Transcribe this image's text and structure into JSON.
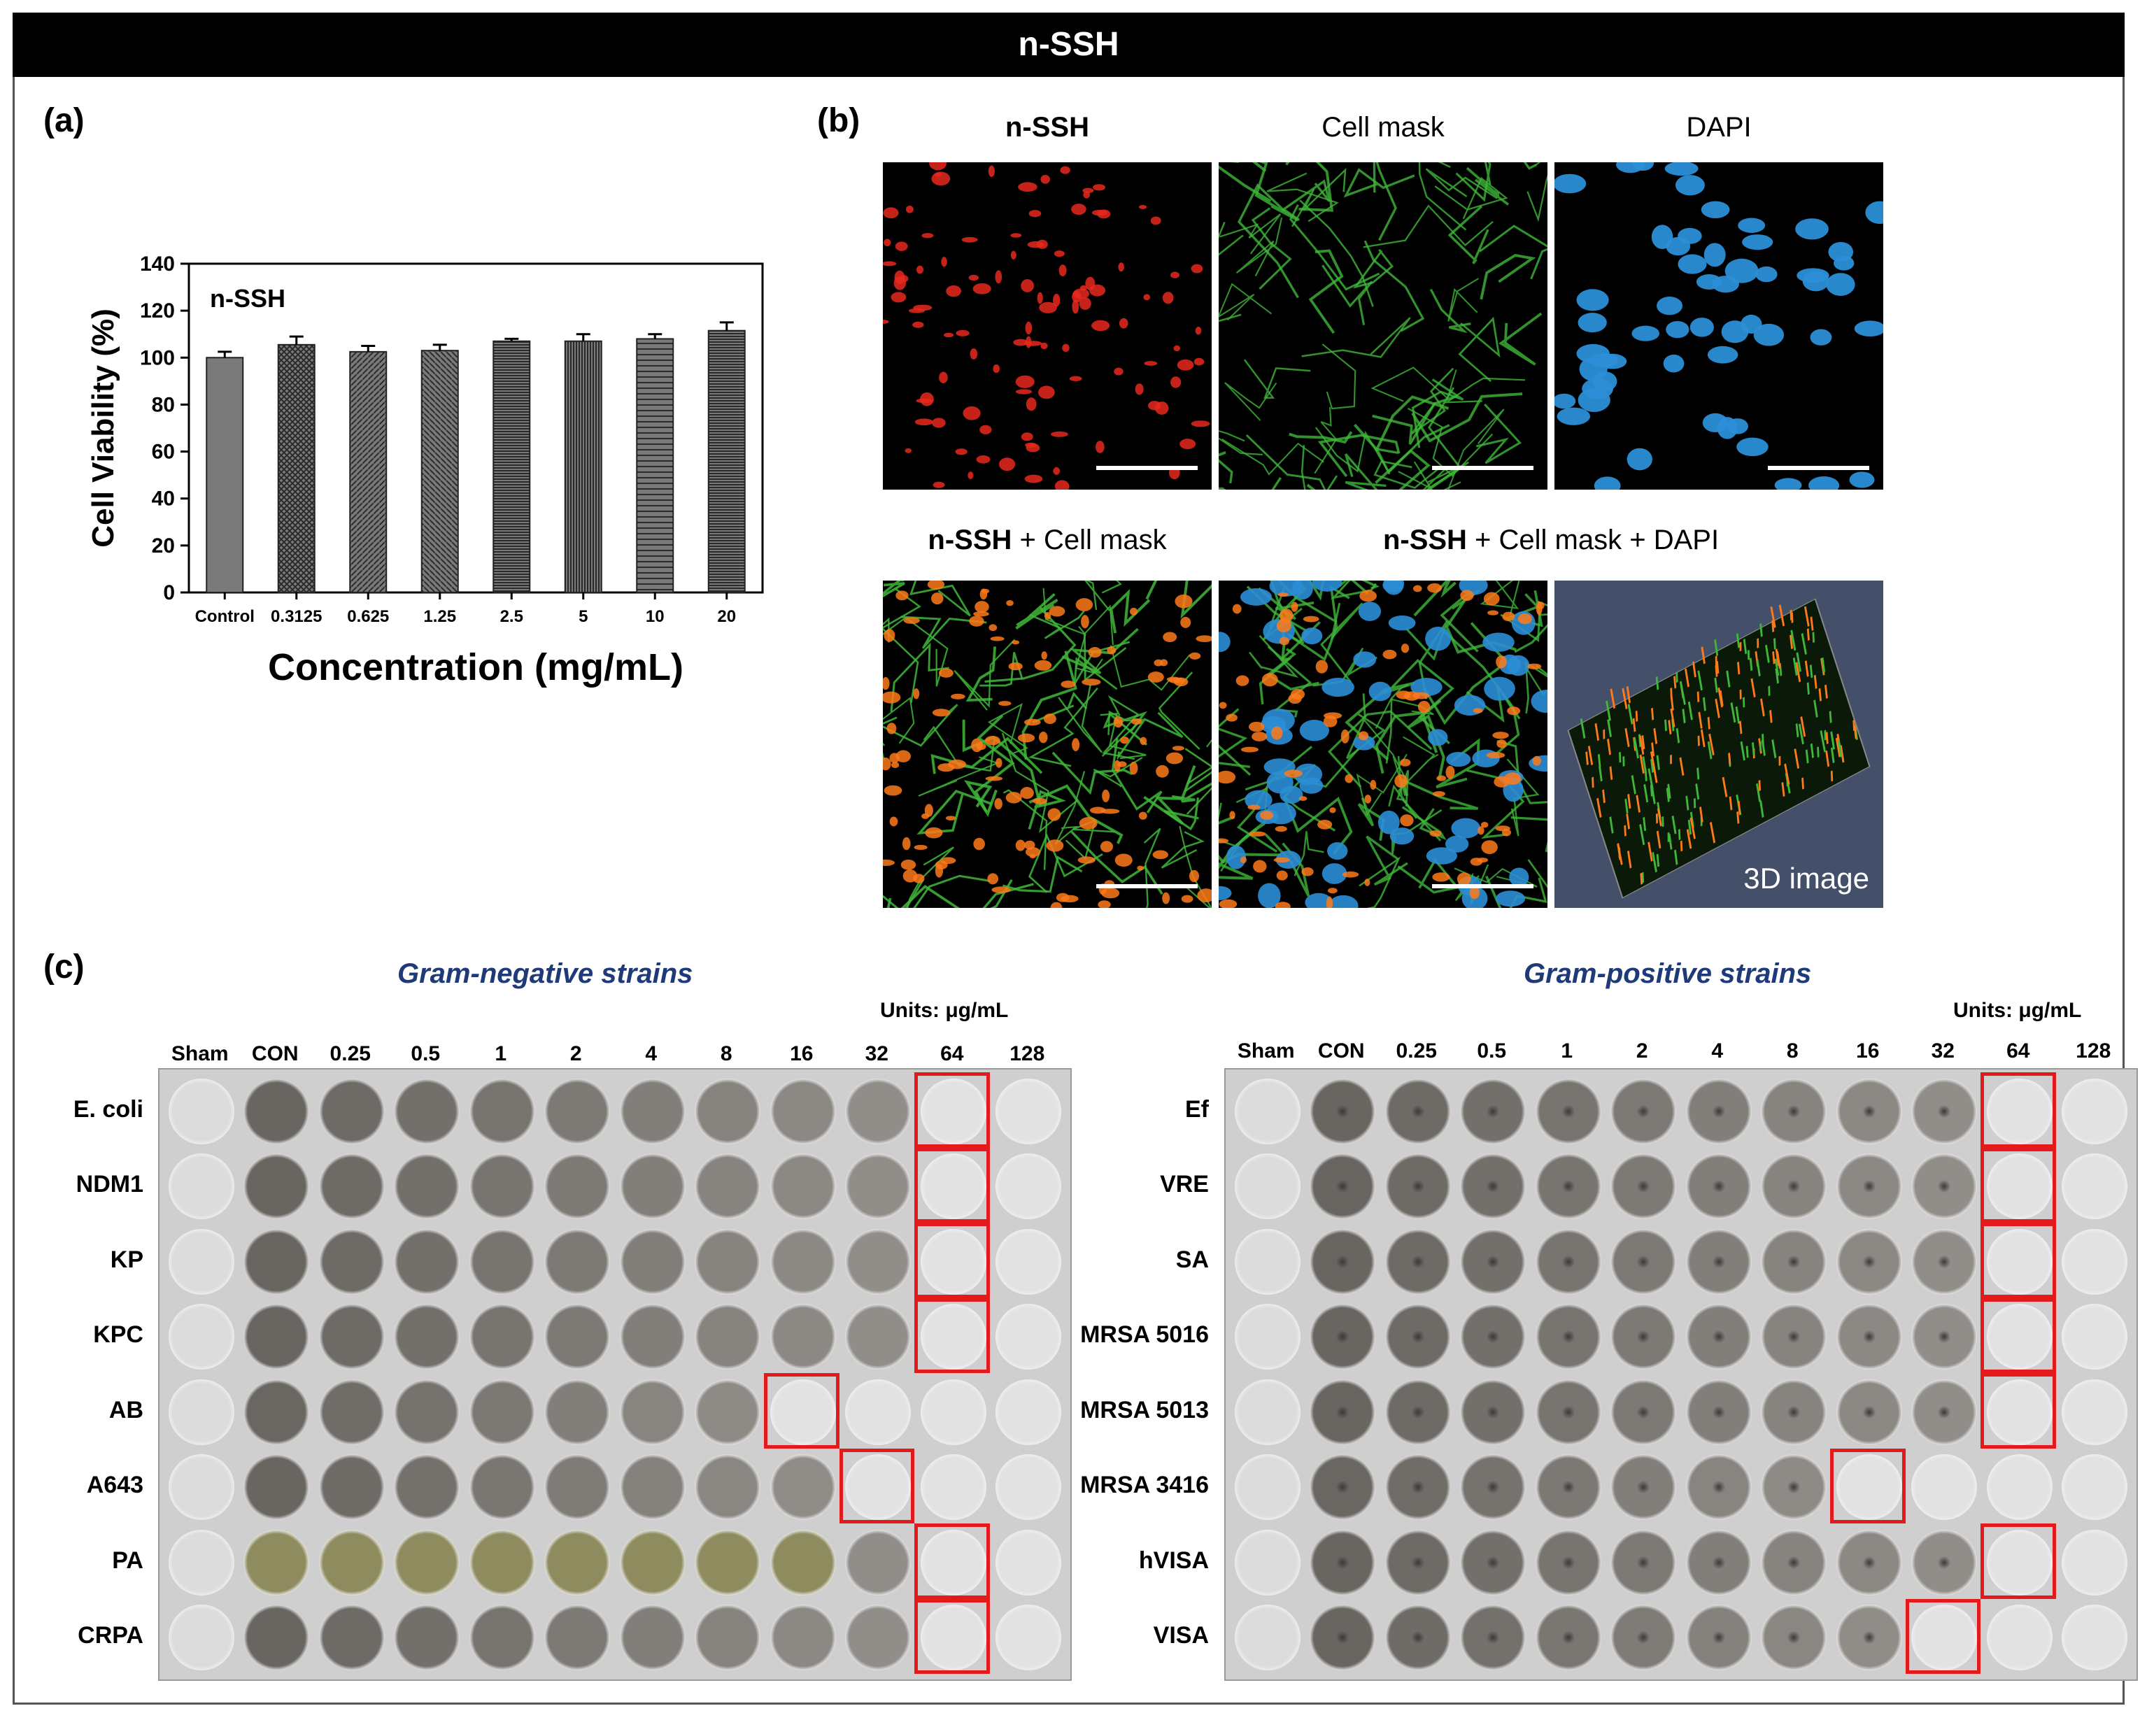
{
  "banner_title": "n-SSH",
  "panels": {
    "a": "(a)",
    "b": "(b)",
    "c": "(c)"
  },
  "chart_data": {
    "type": "bar",
    "inset_label": "n-SSH",
    "categories": [
      "Control",
      "0.3125",
      "0.625",
      "1.25",
      "2.5",
      "5",
      "10",
      "20"
    ],
    "values": [
      100,
      105.5,
      102.5,
      103,
      107,
      107,
      108,
      111.5
    ],
    "errors": [
      2.5,
      3.5,
      2.5,
      2.5,
      1.0,
      3.0,
      2.0,
      3.5
    ],
    "xlabel": "Concentration (mg/mL)",
    "ylabel": "Cell Viability (%)",
    "ylim": [
      0,
      140
    ],
    "yticks": [
      0,
      20,
      40,
      60,
      80,
      100,
      120,
      140
    ],
    "grid": false,
    "legend": "none"
  },
  "microscopy": {
    "top_titles": [
      "n-SSH",
      "Cell mask",
      "DAPI"
    ],
    "bottom_title_1_bold": "n-SSH",
    "bottom_title_1_rest": " + Cell mask",
    "bottom_title_2_bold": "n-SSH",
    "bottom_title_2_rest": " + Cell mask + DAPI",
    "label_3d": "3D image",
    "colors": {
      "red": "#e8281e",
      "green": "#3fb83a",
      "blue": "#2b8ed6",
      "orange": "#ff7a1a",
      "bg3d": "#44506a"
    }
  },
  "gram_negative": {
    "title": "Gram-negative strains",
    "units": "Units: μg/mL",
    "columns": [
      "Sham",
      "CON",
      "0.25",
      "0.5",
      "1",
      "2",
      "4",
      "8",
      "16",
      "32",
      "64",
      "128"
    ],
    "rows": [
      "E. coli",
      "NDM1",
      "KP",
      "KPC",
      "AB",
      "A643",
      "PA",
      "CRPA"
    ],
    "mic_columns": [
      10,
      10,
      10,
      10,
      8,
      9,
      10,
      10
    ]
  },
  "gram_positive": {
    "title": "Gram-positive strains",
    "units": "Units: μg/mL",
    "columns": [
      "Sham",
      "CON",
      "0.25",
      "0.5",
      "1",
      "2",
      "4",
      "8",
      "16",
      "32",
      "64",
      "128"
    ],
    "rows": [
      "Ef",
      "VRE",
      "SA",
      "MRSA 5016",
      "MRSA 5013",
      "MRSA 3416",
      "hVISA",
      "VISA"
    ],
    "mic_columns": [
      10,
      10,
      10,
      10,
      10,
      8,
      10,
      9
    ]
  }
}
